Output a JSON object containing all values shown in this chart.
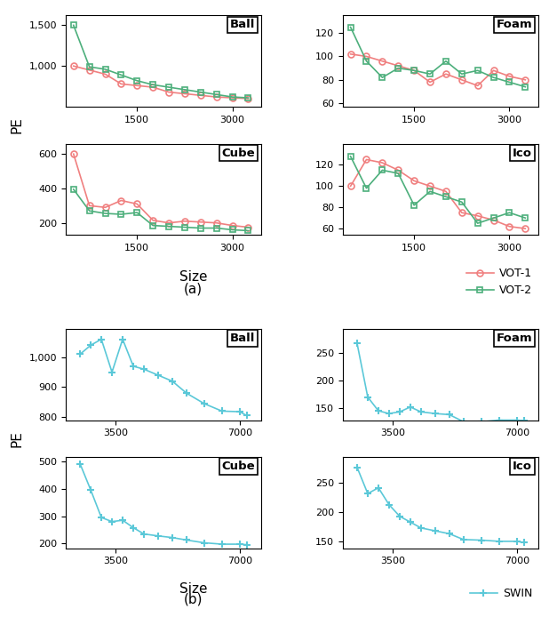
{
  "part_a": {
    "x": [
      500,
      750,
      1000,
      1250,
      1500,
      1750,
      2000,
      2250,
      2500,
      2750,
      3000,
      3250
    ],
    "ball_vot1": [
      1000,
      950,
      900,
      780,
      760,
      740,
      680,
      660,
      640,
      620,
      610,
      600
    ],
    "ball_vot2": [
      1500,
      990,
      960,
      890,
      820,
      770,
      740,
      710,
      680,
      650,
      620,
      610
    ],
    "foam_vot1": [
      102,
      100,
      96,
      92,
      88,
      78,
      85,
      80,
      75,
      88,
      83,
      80
    ],
    "foam_vot2": [
      125,
      96,
      82,
      90,
      88,
      85,
      96,
      85,
      88,
      82,
      78,
      74
    ],
    "cube_vot1": [
      600,
      300,
      290,
      330,
      310,
      215,
      200,
      210,
      205,
      200,
      185,
      175
    ],
    "cube_vot2": [
      395,
      270,
      255,
      250,
      260,
      185,
      180,
      175,
      170,
      170,
      160,
      155
    ],
    "ico_vot1": [
      100,
      125,
      122,
      115,
      105,
      100,
      95,
      75,
      72,
      68,
      62,
      60
    ],
    "ico_vot2": [
      128,
      98,
      115,
      112,
      82,
      95,
      90,
      85,
      65,
      70,
      75,
      70
    ],
    "xlim": [
      380,
      3450
    ],
    "xticks": [
      1500,
      3000
    ],
    "ball_ylim": [
      500,
      1620
    ],
    "ball_yticks": [
      1000,
      1500
    ],
    "foam_ylim": [
      57,
      135
    ],
    "foam_yticks": [
      60,
      80,
      100,
      120
    ],
    "cube_ylim": [
      130,
      660
    ],
    "cube_yticks": [
      200,
      400,
      600
    ],
    "ico_ylim": [
      54,
      140
    ],
    "ico_yticks": [
      60,
      80,
      100,
      120
    ],
    "vot1_color": "#f08080",
    "vot2_color": "#4daf7c",
    "xlabel": "Size",
    "ylabel": "PE",
    "label_a": "(a)",
    "titles": [
      "Ball",
      "Foam",
      "Cube",
      "Ico"
    ]
  },
  "part_b": {
    "x": [
      2500,
      2800,
      3100,
      3400,
      3700,
      4000,
      4300,
      4700,
      5100,
      5500,
      6000,
      6500,
      7000,
      7200
    ],
    "ball_swin": [
      1010,
      1040,
      1060,
      950,
      1060,
      970,
      960,
      940,
      920,
      880,
      845,
      820,
      818,
      805
    ],
    "foam_swin": [
      268,
      170,
      145,
      140,
      143,
      152,
      143,
      140,
      138,
      125,
      125,
      128,
      128,
      127
    ],
    "cube_swin": [
      490,
      395,
      295,
      280,
      285,
      258,
      235,
      228,
      222,
      213,
      203,
      198,
      198,
      196
    ],
    "ico_swin": [
      277,
      232,
      242,
      213,
      193,
      183,
      173,
      168,
      163,
      153,
      152,
      150,
      150,
      148
    ],
    "xlim": [
      2100,
      7600
    ],
    "xticks": [
      3500,
      7000
    ],
    "ball_ylim": [
      790,
      1095
    ],
    "ball_yticks": [
      800,
      900,
      1000
    ],
    "foam_ylim": [
      128,
      295
    ],
    "foam_yticks": [
      150,
      200,
      250
    ],
    "cube_ylim": [
      183,
      515
    ],
    "cube_yticks": [
      200,
      300,
      400,
      500
    ],
    "ico_ylim": [
      138,
      295
    ],
    "ico_yticks": [
      150,
      200,
      250
    ],
    "swin_color": "#5bc8d8",
    "xlabel": "Size",
    "ylabel": "PE",
    "label_b": "(b)",
    "titles": [
      "Ball",
      "Foam",
      "Cube",
      "Ico"
    ]
  }
}
